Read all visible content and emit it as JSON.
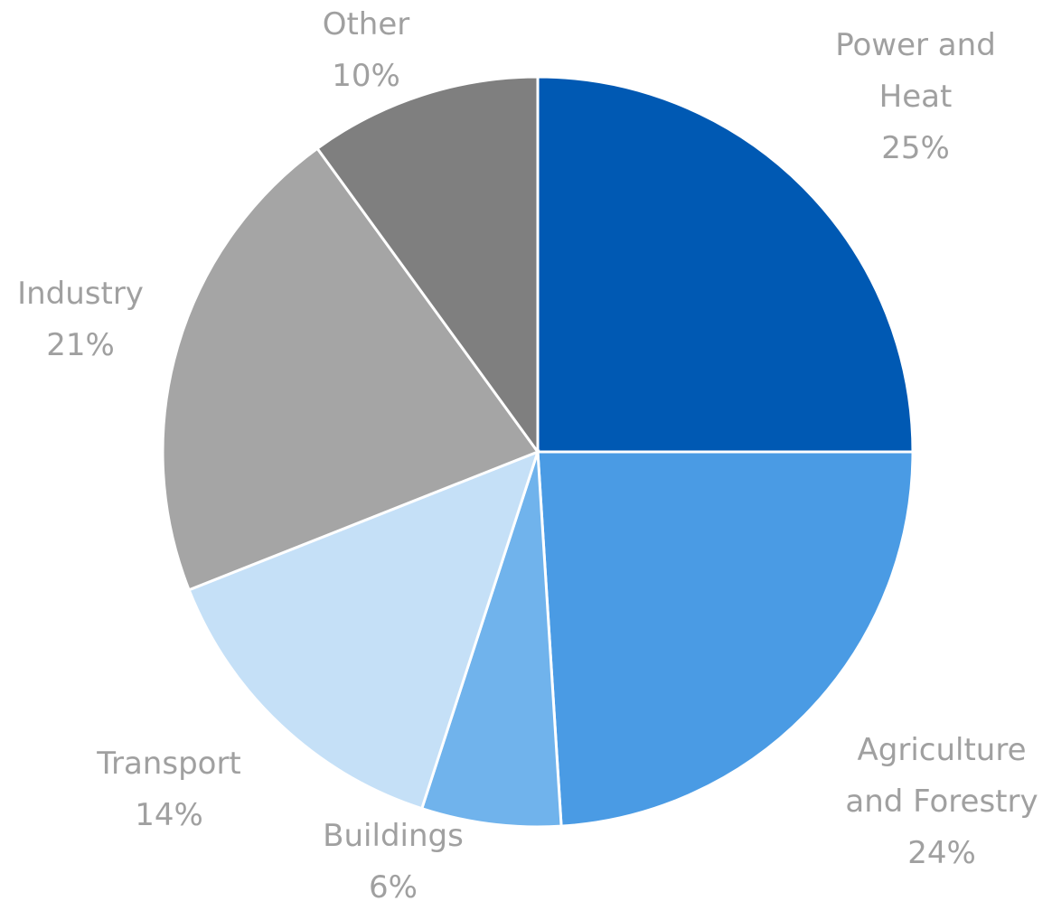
{
  "chart_data": {
    "type": "pie",
    "categories": [
      "Power and Heat",
      "Agriculture and Forestry",
      "Buildings",
      "Transport",
      "Industry",
      "Other"
    ],
    "values": [
      25,
      24,
      6,
      14,
      21,
      10
    ],
    "value_labels": [
      "25%",
      "24%",
      "6%",
      "14%",
      "21%",
      "10%"
    ],
    "colors": [
      "#0059b3",
      "#4a9be4",
      "#70b3ec",
      "#c5e0f7",
      "#a5a5a5",
      "#7f7f7f"
    ]
  }
}
